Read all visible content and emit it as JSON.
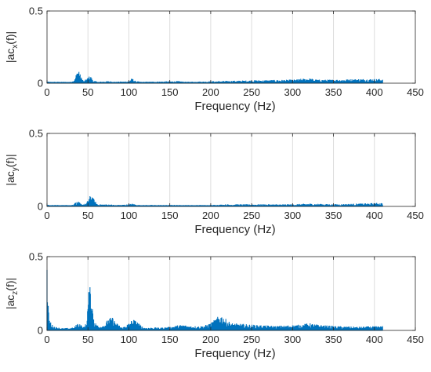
{
  "colors": {
    "series": "#0072BD",
    "grid": "#dcdcdc",
    "axis": "#262626"
  },
  "chart_data": [
    {
      "type": "area",
      "ylabel": {
        "prefix": "|ac",
        "sub": "x",
        "suffix": "(f)|"
      },
      "xlabel": "Frequency (Hz)",
      "xlim": [
        0,
        450
      ],
      "ylim": [
        0,
        0.5
      ],
      "xticks": [
        "0",
        "50",
        "100",
        "150",
        "200",
        "250",
        "300",
        "350",
        "400",
        "450"
      ],
      "yticks": [
        "0",
        "0.5"
      ],
      "grid": "vertical",
      "x_max": 410,
      "floor": 0.01,
      "profile": [
        [
          0,
          0.015
        ],
        [
          2,
          0.01
        ],
        [
          30,
          0.01
        ],
        [
          34,
          0.03
        ],
        [
          37,
          0.09
        ],
        [
          39,
          0.1
        ],
        [
          41,
          0.05
        ],
        [
          45,
          0.015
        ],
        [
          50,
          0.04
        ],
        [
          53,
          0.055
        ],
        [
          56,
          0.02
        ],
        [
          62,
          0.01
        ],
        [
          75,
          0.015
        ],
        [
          85,
          0.01
        ],
        [
          100,
          0.015
        ],
        [
          104,
          0.035
        ],
        [
          108,
          0.015
        ],
        [
          115,
          0.01
        ],
        [
          160,
          0.015
        ],
        [
          170,
          0.01
        ],
        [
          250,
          0.02
        ],
        [
          300,
          0.025
        ],
        [
          320,
          0.035
        ],
        [
          330,
          0.025
        ],
        [
          350,
          0.025
        ],
        [
          380,
          0.03
        ],
        [
          410,
          0.03
        ]
      ]
    },
    {
      "type": "area",
      "ylabel": {
        "prefix": "|ac",
        "sub": "y",
        "suffix": "(f)|"
      },
      "xlabel": "Frequency (Hz)",
      "xlim": [
        0,
        450
      ],
      "ylim": [
        0,
        0.5
      ],
      "xticks": [
        "0",
        "50",
        "100",
        "150",
        "200",
        "250",
        "300",
        "350",
        "400",
        "450"
      ],
      "yticks": [
        "0",
        "0.5"
      ],
      "grid": "vertical",
      "x_max": 410,
      "floor": 0.008,
      "profile": [
        [
          0,
          0.015
        ],
        [
          2,
          0.01
        ],
        [
          30,
          0.01
        ],
        [
          34,
          0.025
        ],
        [
          38,
          0.035
        ],
        [
          42,
          0.015
        ],
        [
          48,
          0.02
        ],
        [
          52,
          0.07
        ],
        [
          55,
          0.08
        ],
        [
          58,
          0.04
        ],
        [
          62,
          0.015
        ],
        [
          75,
          0.015
        ],
        [
          85,
          0.01
        ],
        [
          100,
          0.015
        ],
        [
          105,
          0.02
        ],
        [
          110,
          0.01
        ],
        [
          200,
          0.01
        ],
        [
          220,
          0.015
        ],
        [
          300,
          0.015
        ],
        [
          320,
          0.02
        ],
        [
          350,
          0.015
        ],
        [
          380,
          0.02
        ],
        [
          410,
          0.025
        ]
      ]
    },
    {
      "type": "area",
      "ylabel": {
        "prefix": "|ac",
        "sub": "z",
        "suffix": "(f)|"
      },
      "xlabel": "Frequency (Hz)",
      "xlim": [
        0,
        450
      ],
      "ylim": [
        0,
        0.5
      ],
      "xticks": [
        "0",
        "50",
        "100",
        "150",
        "200",
        "250",
        "300",
        "350",
        "400",
        "450"
      ],
      "yticks": [
        "0",
        "0.5"
      ],
      "grid": "vertical",
      "x_max": 410,
      "floor": 0.01,
      "profile": [
        [
          0,
          0.45
        ],
        [
          1,
          0.2
        ],
        [
          3,
          0.08
        ],
        [
          6,
          0.04
        ],
        [
          10,
          0.025
        ],
        [
          20,
          0.015
        ],
        [
          33,
          0.02
        ],
        [
          37,
          0.05
        ],
        [
          40,
          0.05
        ],
        [
          44,
          0.02
        ],
        [
          48,
          0.05
        ],
        [
          51,
          0.28
        ],
        [
          53,
          0.3
        ],
        [
          55,
          0.2
        ],
        [
          58,
          0.06
        ],
        [
          63,
          0.03
        ],
        [
          70,
          0.04
        ],
        [
          75,
          0.08
        ],
        [
          80,
          0.09
        ],
        [
          85,
          0.05
        ],
        [
          92,
          0.02
        ],
        [
          100,
          0.05
        ],
        [
          105,
          0.08
        ],
        [
          110,
          0.06
        ],
        [
          118,
          0.02
        ],
        [
          140,
          0.02
        ],
        [
          150,
          0.025
        ],
        [
          165,
          0.04
        ],
        [
          175,
          0.03
        ],
        [
          190,
          0.03
        ],
        [
          200,
          0.05
        ],
        [
          208,
          0.09
        ],
        [
          212,
          0.11
        ],
        [
          218,
          0.08
        ],
        [
          225,
          0.05
        ],
        [
          250,
          0.04
        ],
        [
          280,
          0.03
        ],
        [
          310,
          0.04
        ],
        [
          320,
          0.05
        ],
        [
          330,
          0.04
        ],
        [
          350,
          0.03
        ],
        [
          380,
          0.025
        ],
        [
          410,
          0.03
        ]
      ]
    }
  ]
}
